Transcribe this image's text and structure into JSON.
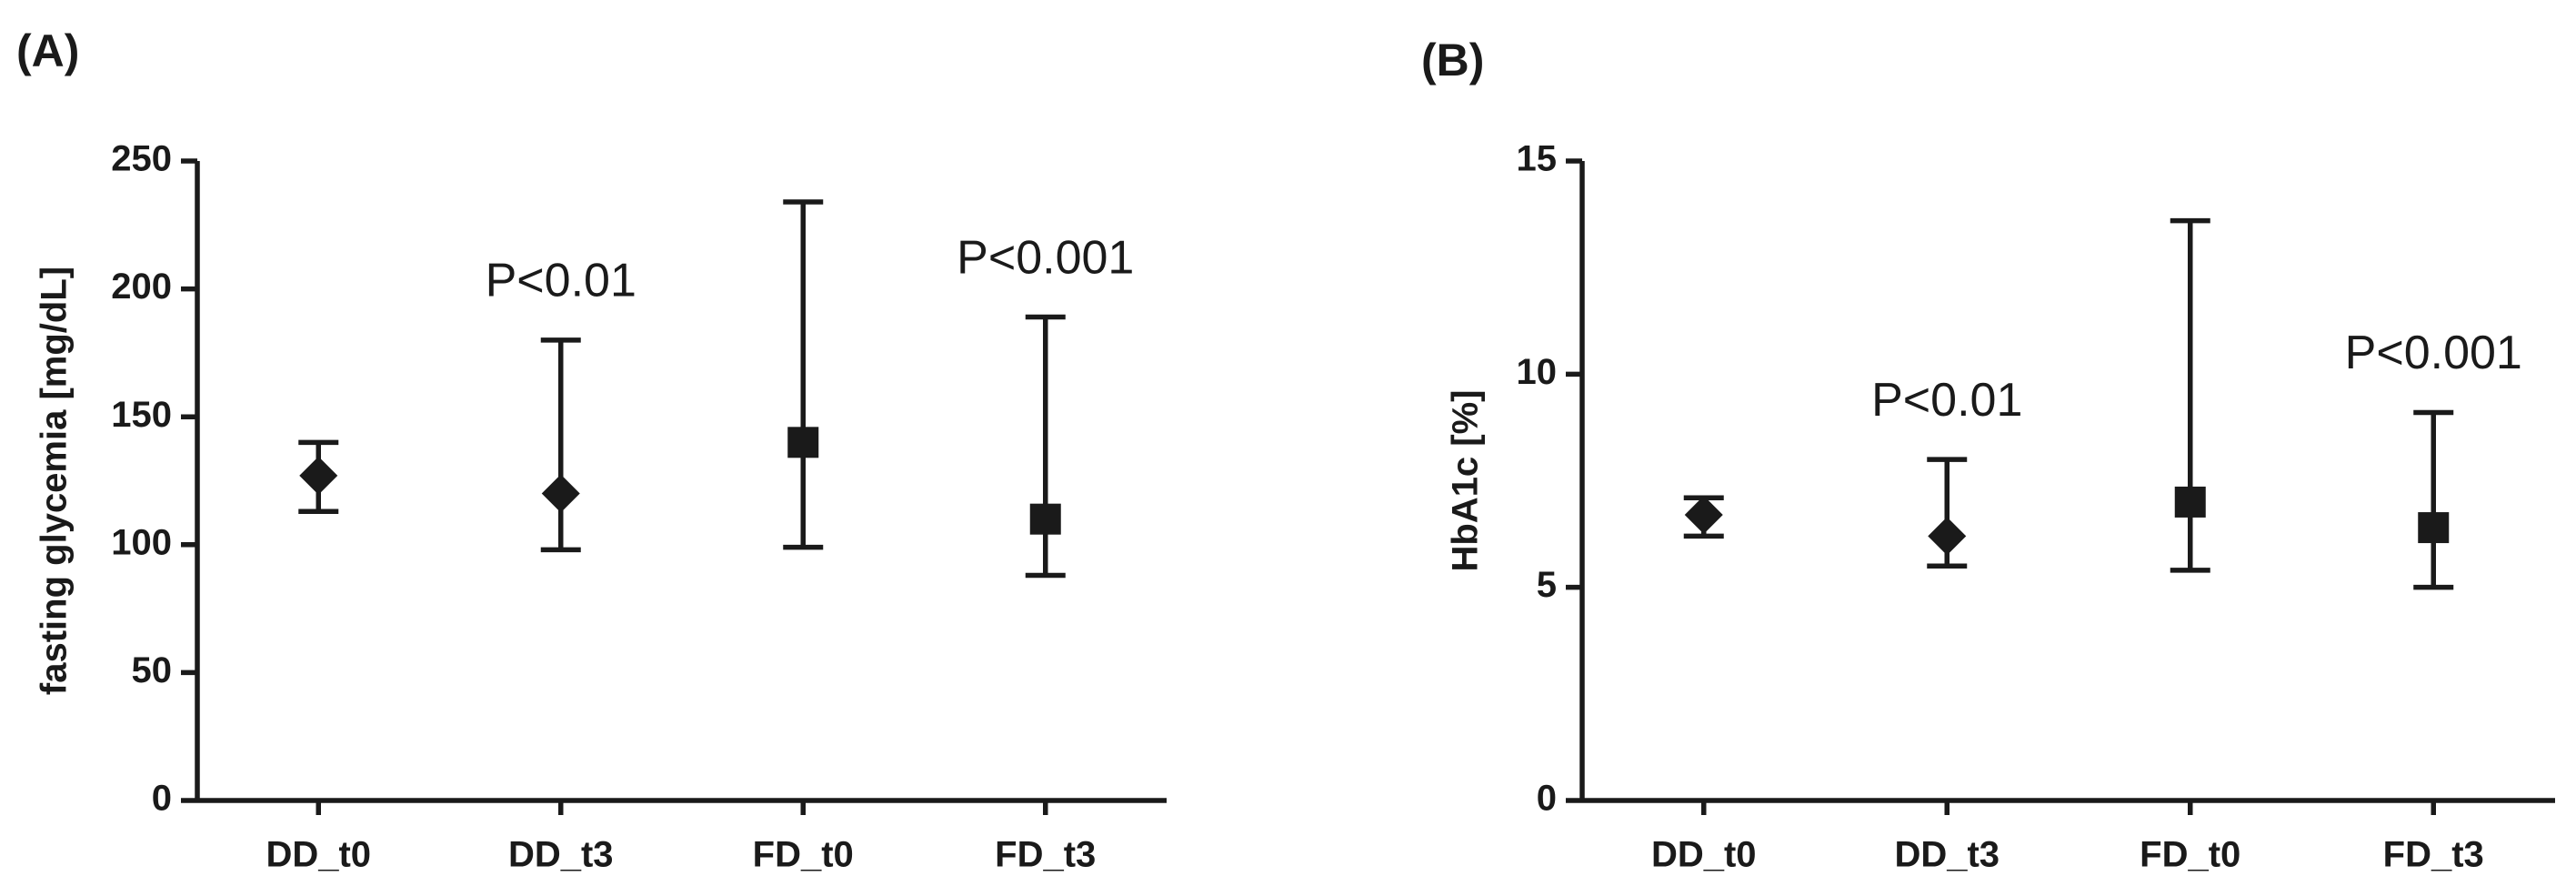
{
  "chart_data": [
    {
      "type": "errorbar",
      "title": "(A)",
      "y_label": "fasting glycemia [mg/dL]",
      "categories": [
        "DD_t0",
        "DD_t3",
        "FD_t0",
        "FD_t3"
      ],
      "values": [
        127,
        120,
        140,
        110
      ],
      "lower": [
        113,
        98,
        99,
        88
      ],
      "upper": [
        140,
        180,
        234,
        189
      ],
      "markers": [
        "diamond",
        "diamond",
        "square",
        "square"
      ],
      "color": "#1a1a1a",
      "ylim": [
        0,
        250
      ],
      "yticks": [
        0,
        50,
        100,
        150,
        200,
        250
      ],
      "annotations": [
        {
          "text": "P<0.01",
          "category": "DD_t3"
        },
        {
          "text": "P<0.001",
          "category": "FD_t3"
        }
      ]
    },
    {
      "type": "errorbar",
      "title": "(B)",
      "y_label": "HbA1c [%]",
      "categories": [
        "DD_t0",
        "DD_t3",
        "FD_t0",
        "FD_t3"
      ],
      "values": [
        6.7,
        6.2,
        7.0,
        6.4
      ],
      "lower": [
        6.2,
        5.5,
        5.4,
        5.0
      ],
      "upper": [
        7.1,
        8.0,
        13.6,
        9.1
      ],
      "markers": [
        "diamond",
        "diamond",
        "square",
        "square"
      ],
      "color": "#1a1a1a",
      "ylim": [
        0,
        15
      ],
      "yticks": [
        0,
        5,
        10,
        15
      ],
      "annotations": [
        {
          "text": "P<0.01",
          "category": "DD_t3"
        },
        {
          "text": "P<0.001",
          "category": "FD_t3"
        }
      ]
    }
  ]
}
